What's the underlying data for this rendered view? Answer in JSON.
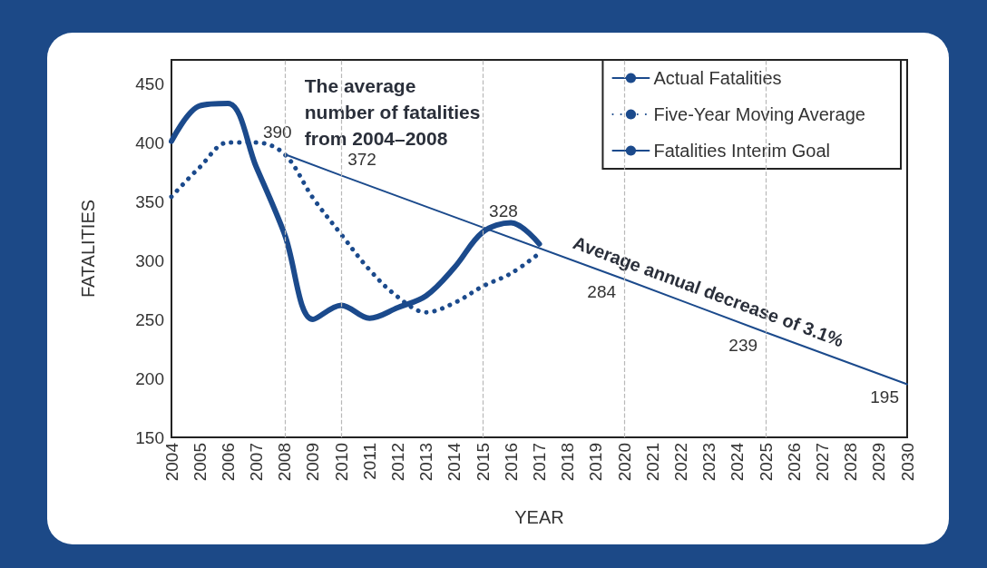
{
  "chart_data": {
    "type": "line",
    "xlabel": "YEAR",
    "ylabel": "FATALITIES",
    "xlim": [
      2004,
      2030
    ],
    "xticks": [
      2004,
      2005,
      2006,
      2007,
      2008,
      2009,
      2010,
      2011,
      2012,
      2013,
      2014,
      2015,
      2016,
      2017,
      2018,
      2019,
      2020,
      2021,
      2022,
      2023,
      2024,
      2025,
      2026,
      2027,
      2028,
      2029,
      2030
    ],
    "ylim": [
      150,
      470
    ],
    "yticks": [
      150,
      200,
      250,
      300,
      350,
      400,
      450
    ],
    "grid": false,
    "legend": "top right",
    "marker": "none",
    "series": [
      {
        "name": "Actual Fatalities",
        "color": "#1b4a8c",
        "line_style": "solid",
        "x": [
          2004,
          2005,
          2006,
          2007,
          2008,
          2009,
          2010,
          2011,
          2012,
          2013,
          2014,
          2015,
          2016,
          2017
        ],
        "values": [
          401,
          431,
          433,
          379,
          322,
          250,
          262,
          251,
          260,
          270,
          294,
          324,
          332,
          314
        ]
      },
      {
        "name": "Five-Year Moving Average",
        "color": "#1b4a8c",
        "line_style": "dotted",
        "x": [
          2004,
          2005,
          2006,
          2007,
          2008,
          2009,
          2010,
          2011,
          2012,
          2013,
          2014,
          2015,
          2016,
          2017
        ],
        "values": [
          354,
          379,
          400,
          400,
          390,
          353,
          322,
          292,
          269,
          256,
          264,
          278,
          289,
          306
        ]
      },
      {
        "name": "Fatalities Interim Goal",
        "color": "#1b4a8c",
        "line_style": "solid",
        "x": [
          2008,
          2010,
          2015,
          2020,
          2025,
          2030
        ],
        "values": [
          390,
          372,
          328,
          284,
          239,
          195
        ],
        "value_labels": [
          "390",
          "372",
          "328",
          "284",
          "239",
          "195"
        ]
      }
    ],
    "ref_lines": [
      {
        "axis": "x",
        "value": 2008,
        "color": "#b8b8b8",
        "line_style": "dashed"
      },
      {
        "axis": "x",
        "value": 2010,
        "color": "#b8b8b8",
        "line_style": "dashed"
      },
      {
        "axis": "x",
        "value": 2015,
        "color": "#b8b8b8",
        "line_style": "dashed"
      },
      {
        "axis": "x",
        "value": 2020,
        "color": "#b8b8b8",
        "line_style": "dashed"
      },
      {
        "axis": "x",
        "value": 2025,
        "color": "#b8b8b8",
        "line_style": "dashed"
      }
    ],
    "annotations": [
      {
        "text": "The average\nnumber of fatalities\nfrom 2004–2008",
        "x": 2008,
        "y": 390
      },
      "Average annual decrease of 3.1%"
    ]
  }
}
